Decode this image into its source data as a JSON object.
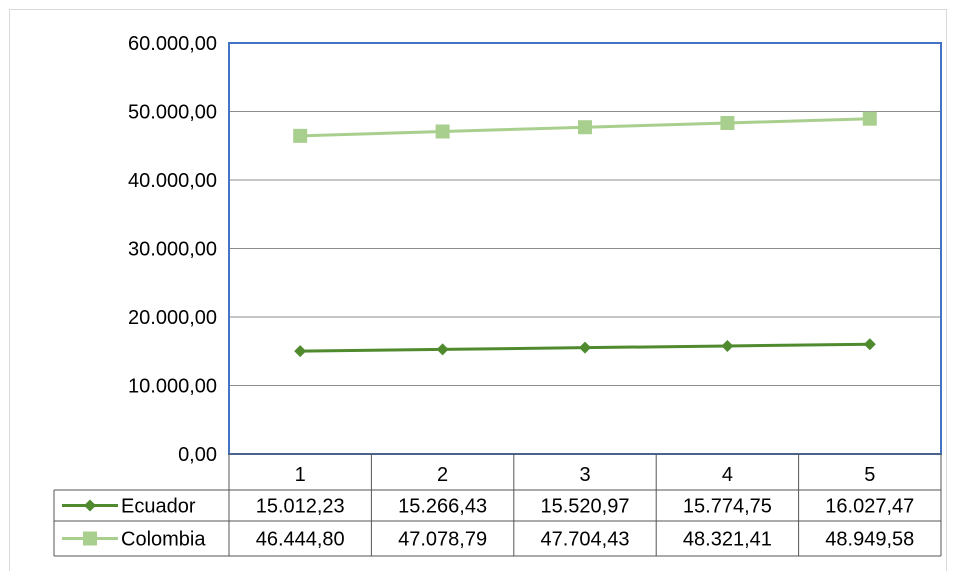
{
  "chart_data": {
    "type": "line",
    "title": "",
    "xlabel": "",
    "ylabel": "",
    "ylim": [
      0,
      60000
    ],
    "yticks": [
      "0,00",
      "10.000,00",
      "20.000,00",
      "30.000,00",
      "40.000,00",
      "50.000,00",
      "60.000,00"
    ],
    "categories": [
      "1",
      "2",
      "3",
      "4",
      "5"
    ],
    "grid": true,
    "legend": "data-table",
    "series": [
      {
        "name": "Ecuador",
        "values": [
          15012.23,
          15266.43,
          15520.97,
          15774.75,
          16027.47
        ],
        "labels": [
          "15.012,23",
          "15.266,43",
          "15.520,97",
          "15.774,75",
          "16.027,47"
        ],
        "color": "#4f8a2e",
        "marker": "diamond"
      },
      {
        "name": "Colombia",
        "values": [
          46444.8,
          47078.79,
          47704.43,
          48321.41,
          48949.58
        ],
        "labels": [
          "46.444,80",
          "47.078,79",
          "47.704,43",
          "48.321,41",
          "48.949,58"
        ],
        "color": "#a9cf8f",
        "marker": "square"
      }
    ],
    "colors": {
      "plot_border": "#4472c4",
      "gridline": "#8c8c8c"
    }
  }
}
